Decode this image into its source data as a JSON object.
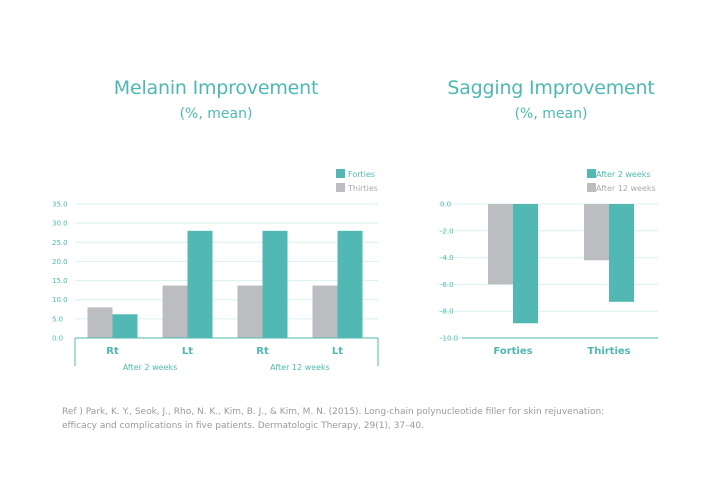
{
  "reference": {
    "line1": "Ref ) Park, K. Y., Seok, J., Rho, N. K., Kim, B. J., & Kim, M. N. (2015). Long-chain polynucleotide filler for skin rejuvenation:",
    "line2": "efficacy and complications in five patients. Dermatologic Therapy, 29(1), 37–40."
  },
  "colors": {
    "teal": "#52b8b4",
    "gray": "#bcbdc1",
    "grid": "#d9f0ee",
    "text": "#4fb8b2"
  },
  "chart_data": [
    {
      "type": "bar",
      "title": "Melanin Improvement",
      "subtitle": "(%, mean)",
      "categories": [
        "Rt",
        "Lt",
        "Rt",
        "Lt"
      ],
      "groups": [
        {
          "label": "After 2 weeks",
          "categories": [
            "Rt",
            "Lt"
          ]
        },
        {
          "label": "After 12 weeks",
          "categories": [
            "Rt",
            "Lt"
          ]
        }
      ],
      "series": [
        {
          "name": "Thirties",
          "values": [
            8.0,
            13.7,
            13.7,
            13.7
          ],
          "color": "#bcbdc1"
        },
        {
          "name": "Forties",
          "values": [
            6.2,
            28.0,
            28.0,
            28.0
          ],
          "color": "#52b8b4"
        }
      ],
      "legend": [
        "Forties",
        "Thirties"
      ],
      "ylim": [
        0,
        35
      ],
      "yticks": [
        "0.0",
        "5.0",
        "10.0",
        "15.0",
        "20.0",
        "25.0",
        "30.0",
        "35.0"
      ],
      "grid": true,
      "legend_position": "top-right"
    },
    {
      "type": "bar",
      "title": "Sagging Improvement",
      "subtitle": "(%, mean)",
      "categories": [
        "Forties",
        "Thirties"
      ],
      "series": [
        {
          "name": "After 12 weeks",
          "values": [
            -6.0,
            -4.2
          ],
          "color": "#bcbdc1"
        },
        {
          "name": "After 2 weeks",
          "values": [
            -8.9,
            -7.3
          ],
          "color": "#52b8b4"
        }
      ],
      "legend": [
        "After 2 weeks",
        "After 12 weeks"
      ],
      "ylim": [
        -10,
        0
      ],
      "yticks": [
        "0.0",
        "-2.0",
        "-4.0",
        "-6.0",
        "-8.0",
        "-10.0"
      ],
      "grid": true,
      "legend_position": "top-right"
    }
  ]
}
